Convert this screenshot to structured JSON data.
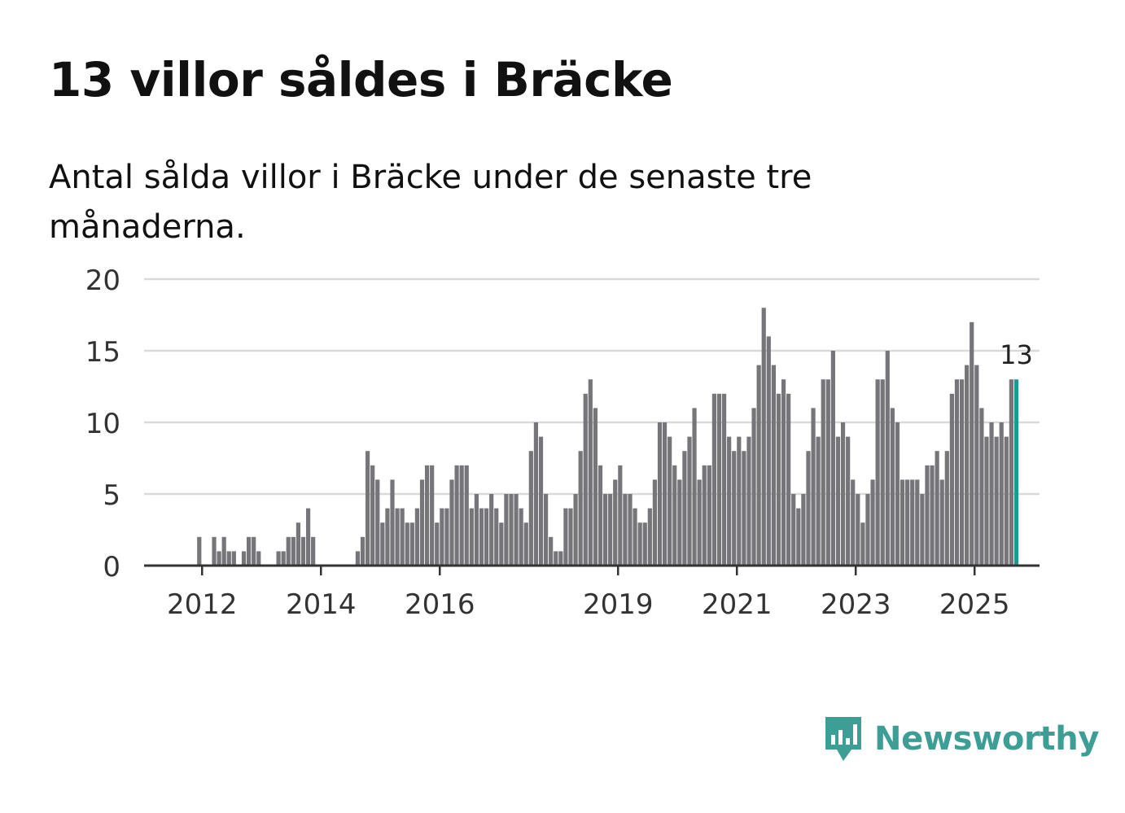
{
  "header": {
    "title": "13 villor såldes i Bräcke",
    "subtitle": "Antal sålda villor i Bräcke under de senaste tre månaderna."
  },
  "brand": {
    "name": "Newsworthy",
    "icon": "newsworthy-chart-bubble-icon",
    "color": "#3d9e95"
  },
  "colors": {
    "bar": "#76757a",
    "highlight": "#1a9a93",
    "grid": "#d9d9d9",
    "axis": "#333333"
  },
  "chart_data": {
    "type": "bar",
    "title": "13 villor såldes i Bräcke",
    "subtitle": "Antal sålda villor i Bräcke under de senaste tre månaderna.",
    "xlabel": "",
    "ylabel": "",
    "ylim": [
      0,
      20
    ],
    "yticks": [
      0,
      5,
      10,
      15,
      20
    ],
    "xticks": [
      {
        "label": "2012",
        "year": 2012
      },
      {
        "label": "2014",
        "year": 2014
      },
      {
        "label": "2016",
        "year": 2016
      },
      {
        "label": "2019",
        "year": 2019
      },
      {
        "label": "2021",
        "year": 2021
      },
      {
        "label": "2023",
        "year": 2023
      },
      {
        "label": "2025",
        "year": 2025
      }
    ],
    "grid": true,
    "start": "2011-10",
    "frequency": "monthly",
    "highlight_label": "13",
    "values": [
      0,
      0,
      2,
      0,
      0,
      2,
      1,
      2,
      1,
      1,
      0,
      1,
      2,
      2,
      1,
      0,
      0,
      0,
      1,
      1,
      2,
      2,
      3,
      2,
      4,
      2,
      0,
      0,
      0,
      0,
      0,
      0,
      0,
      0,
      1,
      2,
      8,
      7,
      6,
      3,
      4,
      6,
      4,
      4,
      3,
      3,
      4,
      6,
      7,
      7,
      3,
      4,
      4,
      6,
      7,
      7,
      7,
      4,
      5,
      4,
      4,
      5,
      4,
      3,
      5,
      5,
      5,
      4,
      3,
      8,
      10,
      9,
      5,
      2,
      1,
      1,
      4,
      4,
      5,
      8,
      12,
      13,
      11,
      7,
      5,
      5,
      6,
      7,
      5,
      5,
      4,
      3,
      3,
      4,
      6,
      10,
      10,
      9,
      7,
      6,
      8,
      9,
      11,
      6,
      7,
      7,
      12,
      12,
      12,
      9,
      8,
      9,
      8,
      9,
      11,
      14,
      18,
      16,
      14,
      12,
      13,
      12,
      5,
      4,
      5,
      8,
      11,
      9,
      13,
      13,
      15,
      9,
      10,
      9,
      6,
      5,
      3,
      5,
      6,
      13,
      13,
      15,
      11,
      10,
      6,
      6,
      6,
      6,
      5,
      7,
      7,
      8,
      6,
      8,
      12,
      13,
      13,
      14,
      17,
      14,
      11,
      9,
      10,
      9,
      10,
      9,
      13,
      13
    ]
  }
}
